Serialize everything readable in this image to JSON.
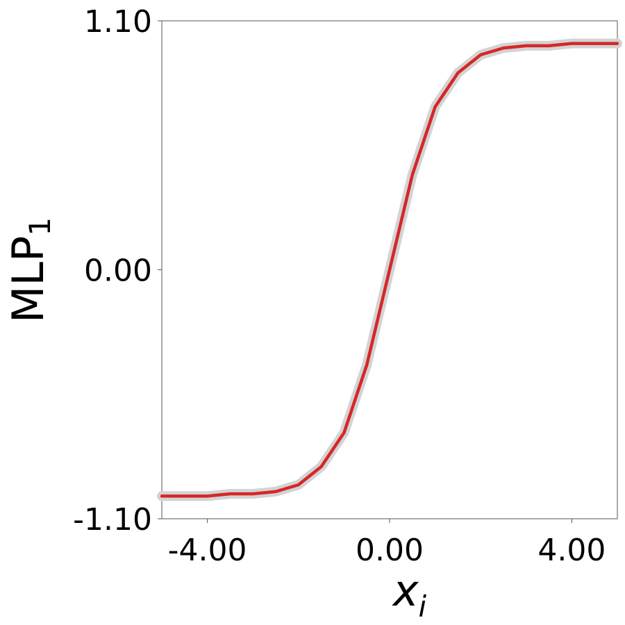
{
  "chart_data": {
    "type": "line",
    "x": [
      -5,
      -4.5,
      -4,
      -3.5,
      -3,
      -2.5,
      -2,
      -1.5,
      -1,
      -0.5,
      0,
      0.5,
      1,
      1.5,
      2,
      2.5,
      3,
      3.5,
      4,
      4.5,
      5
    ],
    "series": [
      {
        "color": "#d3d3d3",
        "values": [
          -1.0,
          -1.0,
          -1.0,
          -0.99,
          -0.99,
          -0.98,
          -0.95,
          -0.87,
          -0.72,
          -0.42,
          0,
          0.42,
          0.72,
          0.87,
          0.95,
          0.98,
          0.99,
          0.99,
          1.0,
          1.0,
          1.0
        ]
      },
      {
        "color": "#d62728",
        "values": [
          -1.0,
          -1.0,
          -1.0,
          -0.99,
          -0.99,
          -0.98,
          -0.95,
          -0.87,
          -0.72,
          -0.42,
          0,
          0.42,
          0.72,
          0.87,
          0.95,
          0.98,
          0.99,
          0.99,
          1.0,
          1.0,
          1.0
        ]
      }
    ],
    "xlabel": {
      "text": "x",
      "subscript": "i"
    },
    "ylabel": {
      "text": "MLP",
      "subscript": "1"
    },
    "xlim": [
      -5,
      5
    ],
    "ylim": [
      -1.1,
      1.1
    ],
    "xticks": [
      {
        "value": -4,
        "label": "-4.00"
      },
      {
        "value": 0,
        "label": "0.00"
      },
      {
        "value": 4,
        "label": "4.00"
      }
    ],
    "yticks": [
      {
        "value": -1.1,
        "label": "-1.10"
      },
      {
        "value": 0,
        "label": "0.00"
      },
      {
        "value": 1.1,
        "label": "1.10"
      }
    ]
  }
}
